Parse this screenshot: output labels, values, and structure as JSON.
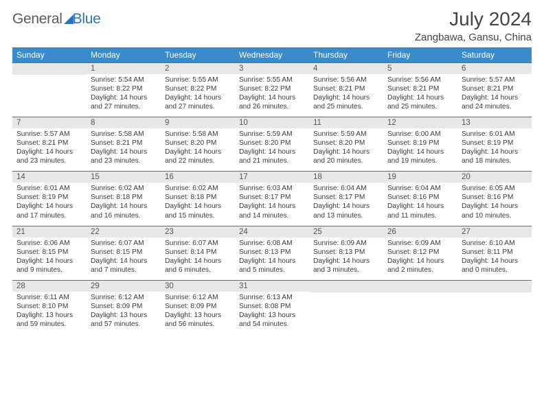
{
  "logo": {
    "textA": "General",
    "textB": "Blue"
  },
  "header": {
    "month_title": "July 2024",
    "location": "Zangbawa, Gansu, China"
  },
  "colors": {
    "header_bg": "#3a8bc9",
    "daynum_bg": "#e8e8e8",
    "page_bg": "#ffffff",
    "text": "#3a3a3a",
    "logo_gray": "#5a5a5a",
    "logo_blue": "#2a74b8",
    "row_border": "#6a6a6a"
  },
  "day_headers": [
    "Sunday",
    "Monday",
    "Tuesday",
    "Wednesday",
    "Thursday",
    "Friday",
    "Saturday"
  ],
  "weeks": [
    [
      {
        "n": "",
        "lines": []
      },
      {
        "n": "1",
        "lines": [
          "Sunrise: 5:54 AM",
          "Sunset: 8:22 PM",
          "Daylight: 14 hours and 27 minutes."
        ]
      },
      {
        "n": "2",
        "lines": [
          "Sunrise: 5:55 AM",
          "Sunset: 8:22 PM",
          "Daylight: 14 hours and 27 minutes."
        ]
      },
      {
        "n": "3",
        "lines": [
          "Sunrise: 5:55 AM",
          "Sunset: 8:22 PM",
          "Daylight: 14 hours and 26 minutes."
        ]
      },
      {
        "n": "4",
        "lines": [
          "Sunrise: 5:56 AM",
          "Sunset: 8:21 PM",
          "Daylight: 14 hours and 25 minutes."
        ]
      },
      {
        "n": "5",
        "lines": [
          "Sunrise: 5:56 AM",
          "Sunset: 8:21 PM",
          "Daylight: 14 hours and 25 minutes."
        ]
      },
      {
        "n": "6",
        "lines": [
          "Sunrise: 5:57 AM",
          "Sunset: 8:21 PM",
          "Daylight: 14 hours and 24 minutes."
        ]
      }
    ],
    [
      {
        "n": "7",
        "lines": [
          "Sunrise: 5:57 AM",
          "Sunset: 8:21 PM",
          "Daylight: 14 hours and 23 minutes."
        ]
      },
      {
        "n": "8",
        "lines": [
          "Sunrise: 5:58 AM",
          "Sunset: 8:21 PM",
          "Daylight: 14 hours and 23 minutes."
        ]
      },
      {
        "n": "9",
        "lines": [
          "Sunrise: 5:58 AM",
          "Sunset: 8:20 PM",
          "Daylight: 14 hours and 22 minutes."
        ]
      },
      {
        "n": "10",
        "lines": [
          "Sunrise: 5:59 AM",
          "Sunset: 8:20 PM",
          "Daylight: 14 hours and 21 minutes."
        ]
      },
      {
        "n": "11",
        "lines": [
          "Sunrise: 5:59 AM",
          "Sunset: 8:20 PM",
          "Daylight: 14 hours and 20 minutes."
        ]
      },
      {
        "n": "12",
        "lines": [
          "Sunrise: 6:00 AM",
          "Sunset: 8:19 PM",
          "Daylight: 14 hours and 19 minutes."
        ]
      },
      {
        "n": "13",
        "lines": [
          "Sunrise: 6:01 AM",
          "Sunset: 8:19 PM",
          "Daylight: 14 hours and 18 minutes."
        ]
      }
    ],
    [
      {
        "n": "14",
        "lines": [
          "Sunrise: 6:01 AM",
          "Sunset: 8:19 PM",
          "Daylight: 14 hours and 17 minutes."
        ]
      },
      {
        "n": "15",
        "lines": [
          "Sunrise: 6:02 AM",
          "Sunset: 8:18 PM",
          "Daylight: 14 hours and 16 minutes."
        ]
      },
      {
        "n": "16",
        "lines": [
          "Sunrise: 6:02 AM",
          "Sunset: 8:18 PM",
          "Daylight: 14 hours and 15 minutes."
        ]
      },
      {
        "n": "17",
        "lines": [
          "Sunrise: 6:03 AM",
          "Sunset: 8:17 PM",
          "Daylight: 14 hours and 14 minutes."
        ]
      },
      {
        "n": "18",
        "lines": [
          "Sunrise: 6:04 AM",
          "Sunset: 8:17 PM",
          "Daylight: 14 hours and 13 minutes."
        ]
      },
      {
        "n": "19",
        "lines": [
          "Sunrise: 6:04 AM",
          "Sunset: 8:16 PM",
          "Daylight: 14 hours and 11 minutes."
        ]
      },
      {
        "n": "20",
        "lines": [
          "Sunrise: 6:05 AM",
          "Sunset: 8:16 PM",
          "Daylight: 14 hours and 10 minutes."
        ]
      }
    ],
    [
      {
        "n": "21",
        "lines": [
          "Sunrise: 6:06 AM",
          "Sunset: 8:15 PM",
          "Daylight: 14 hours and 9 minutes."
        ]
      },
      {
        "n": "22",
        "lines": [
          "Sunrise: 6:07 AM",
          "Sunset: 8:15 PM",
          "Daylight: 14 hours and 7 minutes."
        ]
      },
      {
        "n": "23",
        "lines": [
          "Sunrise: 6:07 AM",
          "Sunset: 8:14 PM",
          "Daylight: 14 hours and 6 minutes."
        ]
      },
      {
        "n": "24",
        "lines": [
          "Sunrise: 6:08 AM",
          "Sunset: 8:13 PM",
          "Daylight: 14 hours and 5 minutes."
        ]
      },
      {
        "n": "25",
        "lines": [
          "Sunrise: 6:09 AM",
          "Sunset: 8:13 PM",
          "Daylight: 14 hours and 3 minutes."
        ]
      },
      {
        "n": "26",
        "lines": [
          "Sunrise: 6:09 AM",
          "Sunset: 8:12 PM",
          "Daylight: 14 hours and 2 minutes."
        ]
      },
      {
        "n": "27",
        "lines": [
          "Sunrise: 6:10 AM",
          "Sunset: 8:11 PM",
          "Daylight: 14 hours and 0 minutes."
        ]
      }
    ],
    [
      {
        "n": "28",
        "lines": [
          "Sunrise: 6:11 AM",
          "Sunset: 8:10 PM",
          "Daylight: 13 hours and 59 minutes."
        ]
      },
      {
        "n": "29",
        "lines": [
          "Sunrise: 6:12 AM",
          "Sunset: 8:09 PM",
          "Daylight: 13 hours and 57 minutes."
        ]
      },
      {
        "n": "30",
        "lines": [
          "Sunrise: 6:12 AM",
          "Sunset: 8:09 PM",
          "Daylight: 13 hours and 56 minutes."
        ]
      },
      {
        "n": "31",
        "lines": [
          "Sunrise: 6:13 AM",
          "Sunset: 8:08 PM",
          "Daylight: 13 hours and 54 minutes."
        ]
      },
      {
        "n": "",
        "lines": []
      },
      {
        "n": "",
        "lines": []
      },
      {
        "n": "",
        "lines": []
      }
    ]
  ]
}
